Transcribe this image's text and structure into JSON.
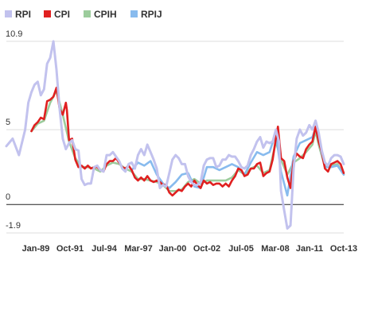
{
  "chart_data": {
    "type": "line",
    "title": "",
    "xlabel": "",
    "ylabel": "",
    "x_start": "1987-01",
    "x_end": "2013-12",
    "ylim": [
      -1.9,
      10.9
    ],
    "yticks": [
      10.9,
      5,
      0,
      -1.9
    ],
    "ytick_labels": [
      "10.9",
      "5",
      "0",
      "-1.9"
    ],
    "xtick_labels": [
      "Jan-89",
      "Oct-91",
      "Jul-94",
      "Mar-97",
      "Jan-00",
      "Oct-02",
      "Jul-05",
      "Mar-08",
      "Jan-11",
      "Oct-13"
    ],
    "grid": true,
    "legend_position": "top-left",
    "series": [
      {
        "name": "RPI",
        "color": "#c2c2ee",
        "points": [
          [
            "1987-01",
            3.9
          ],
          [
            "1987-07",
            4.4
          ],
          [
            "1988-01",
            3.3
          ],
          [
            "1988-07",
            5.0
          ],
          [
            "1988-10",
            6.8
          ],
          [
            "1989-01",
            7.5
          ],
          [
            "1989-04",
            8.0
          ],
          [
            "1989-07",
            8.2
          ],
          [
            "1989-10",
            7.3
          ],
          [
            "1990-01",
            7.7
          ],
          [
            "1990-04",
            9.4
          ],
          [
            "1990-07",
            9.8
          ],
          [
            "1990-10",
            10.9
          ],
          [
            "1991-01",
            9.0
          ],
          [
            "1991-04",
            6.4
          ],
          [
            "1991-07",
            4.4
          ],
          [
            "1991-10",
            3.7
          ],
          [
            "1992-01",
            4.1
          ],
          [
            "1992-04",
            4.3
          ],
          [
            "1992-07",
            3.7
          ],
          [
            "1992-10",
            3.6
          ],
          [
            "1993-01",
            1.7
          ],
          [
            "1993-04",
            1.3
          ],
          [
            "1993-07",
            1.4
          ],
          [
            "1993-10",
            1.4
          ],
          [
            "1994-01",
            2.5
          ],
          [
            "1994-04",
            2.6
          ],
          [
            "1994-07",
            2.3
          ],
          [
            "1994-10",
            2.2
          ],
          [
            "1995-01",
            3.3
          ],
          [
            "1995-04",
            3.3
          ],
          [
            "1995-07",
            3.5
          ],
          [
            "1995-10",
            3.2
          ],
          [
            "1996-01",
            2.9
          ],
          [
            "1996-04",
            2.4
          ],
          [
            "1996-07",
            2.2
          ],
          [
            "1996-10",
            2.7
          ],
          [
            "1997-01",
            2.8
          ],
          [
            "1997-04",
            2.4
          ],
          [
            "1997-07",
            3.3
          ],
          [
            "1997-10",
            3.7
          ],
          [
            "1998-01",
            3.3
          ],
          [
            "1998-04",
            4.0
          ],
          [
            "1998-07",
            3.5
          ],
          [
            "1998-10",
            3.0
          ],
          [
            "1999-01",
            2.4
          ],
          [
            "1999-04",
            1.1
          ],
          [
            "1999-07",
            1.3
          ],
          [
            "1999-10",
            1.2
          ],
          [
            "2000-01",
            2.1
          ],
          [
            "2000-04",
            3.0
          ],
          [
            "2000-07",
            3.3
          ],
          [
            "2000-10",
            3.1
          ],
          [
            "2001-01",
            2.7
          ],
          [
            "2001-04",
            2.7
          ],
          [
            "2001-07",
            1.9
          ],
          [
            "2001-10",
            1.5
          ],
          [
            "2002-01",
            1.3
          ],
          [
            "2002-04",
            1.3
          ],
          [
            "2002-07",
            1.5
          ],
          [
            "2002-10",
            2.6
          ],
          [
            "2003-01",
            3.0
          ],
          [
            "2003-04",
            3.1
          ],
          [
            "2003-07",
            3.1
          ],
          [
            "2003-10",
            2.5
          ],
          [
            "2004-01",
            2.6
          ],
          [
            "2004-04",
            3.0
          ],
          [
            "2004-07",
            3.0
          ],
          [
            "2004-10",
            3.3
          ],
          [
            "2005-01",
            3.2
          ],
          [
            "2005-04",
            3.2
          ],
          [
            "2005-07",
            2.9
          ],
          [
            "2005-10",
            2.5
          ],
          [
            "2006-01",
            2.4
          ],
          [
            "2006-04",
            2.6
          ],
          [
            "2006-07",
            3.3
          ],
          [
            "2006-10",
            3.7
          ],
          [
            "2007-01",
            4.2
          ],
          [
            "2007-04",
            4.5
          ],
          [
            "2007-07",
            3.8
          ],
          [
            "2007-10",
            4.2
          ],
          [
            "2008-01",
            4.1
          ],
          [
            "2008-04",
            4.2
          ],
          [
            "2008-07",
            5.0
          ],
          [
            "2008-10",
            4.2
          ],
          [
            "2008-12",
            0.9
          ],
          [
            "2009-03",
            -0.4
          ],
          [
            "2009-06",
            -1.6
          ],
          [
            "2009-09",
            -1.4
          ],
          [
            "2009-12",
            2.4
          ],
          [
            "2010-03",
            4.4
          ],
          [
            "2010-06",
            5.0
          ],
          [
            "2010-09",
            4.6
          ],
          [
            "2010-12",
            4.8
          ],
          [
            "2011-03",
            5.3
          ],
          [
            "2011-06",
            5.0
          ],
          [
            "2011-09",
            5.6
          ],
          [
            "2011-12",
            4.8
          ],
          [
            "2012-03",
            3.6
          ],
          [
            "2012-06",
            2.8
          ],
          [
            "2012-09",
            2.6
          ],
          [
            "2012-12",
            3.1
          ],
          [
            "2013-03",
            3.3
          ],
          [
            "2013-06",
            3.3
          ],
          [
            "2013-09",
            3.2
          ],
          [
            "2013-12",
            2.7
          ]
        ]
      },
      {
        "name": "CPI",
        "color": "#e02020",
        "points": [
          [
            "1989-01",
            4.9
          ],
          [
            "1989-04",
            5.3
          ],
          [
            "1989-07",
            5.5
          ],
          [
            "1989-10",
            5.8
          ],
          [
            "1990-01",
            5.7
          ],
          [
            "1990-04",
            6.9
          ],
          [
            "1990-07",
            7.0
          ],
          [
            "1990-10",
            7.2
          ],
          [
            "1991-01",
            7.8
          ],
          [
            "1991-04",
            6.4
          ],
          [
            "1991-07",
            6.0
          ],
          [
            "1991-10",
            6.8
          ],
          [
            "1991-11",
            6.3
          ],
          [
            "1992-01",
            4.3
          ],
          [
            "1992-04",
            4.4
          ],
          [
            "1992-07",
            3.0
          ],
          [
            "1992-10",
            2.5
          ],
          [
            "1993-01",
            2.6
          ],
          [
            "1993-04",
            2.4
          ],
          [
            "1993-07",
            2.6
          ],
          [
            "1993-10",
            2.4
          ],
          [
            "1994-01",
            2.5
          ],
          [
            "1994-04",
            2.5
          ],
          [
            "1994-07",
            2.3
          ],
          [
            "1994-10",
            2.2
          ],
          [
            "1995-01",
            2.7
          ],
          [
            "1995-04",
            2.9
          ],
          [
            "1995-07",
            2.9
          ],
          [
            "1995-10",
            3.1
          ],
          [
            "1996-01",
            2.8
          ],
          [
            "1996-04",
            2.5
          ],
          [
            "1996-07",
            2.4
          ],
          [
            "1996-10",
            2.6
          ],
          [
            "1997-01",
            2.3
          ],
          [
            "1997-04",
            1.8
          ],
          [
            "1997-07",
            1.6
          ],
          [
            "1997-10",
            1.8
          ],
          [
            "1998-01",
            1.6
          ],
          [
            "1998-04",
            1.9
          ],
          [
            "1998-07",
            1.6
          ],
          [
            "1998-10",
            1.5
          ],
          [
            "1999-01",
            1.6
          ],
          [
            "1999-04",
            1.5
          ],
          [
            "1999-07",
            1.3
          ],
          [
            "1999-10",
            1.3
          ],
          [
            "2000-01",
            0.8
          ],
          [
            "2000-04",
            0.6
          ],
          [
            "2000-07",
            0.8
          ],
          [
            "2000-10",
            1.0
          ],
          [
            "2001-01",
            0.9
          ],
          [
            "2001-04",
            1.2
          ],
          [
            "2001-07",
            1.4
          ],
          [
            "2001-10",
            1.2
          ],
          [
            "2002-01",
            1.6
          ],
          [
            "2002-04",
            1.3
          ],
          [
            "2002-07",
            1.1
          ],
          [
            "2002-10",
            1.6
          ],
          [
            "2003-01",
            1.4
          ],
          [
            "2003-04",
            1.5
          ],
          [
            "2003-07",
            1.3
          ],
          [
            "2003-10",
            1.4
          ],
          [
            "2004-01",
            1.4
          ],
          [
            "2004-04",
            1.2
          ],
          [
            "2004-07",
            1.4
          ],
          [
            "2004-10",
            1.2
          ],
          [
            "2005-01",
            1.6
          ],
          [
            "2005-04",
            1.9
          ],
          [
            "2005-07",
            2.4
          ],
          [
            "2005-10",
            2.3
          ],
          [
            "2006-01",
            1.9
          ],
          [
            "2006-04",
            2.0
          ],
          [
            "2006-07",
            2.4
          ],
          [
            "2006-10",
            2.4
          ],
          [
            "2007-01",
            2.7
          ],
          [
            "2007-04",
            2.8
          ],
          [
            "2007-07",
            1.9
          ],
          [
            "2007-10",
            2.1
          ],
          [
            "2008-01",
            2.2
          ],
          [
            "2008-04",
            3.0
          ],
          [
            "2008-07",
            4.4
          ],
          [
            "2008-09",
            5.2
          ],
          [
            "2008-12",
            3.1
          ],
          [
            "2009-03",
            2.9
          ],
          [
            "2009-06",
            1.8
          ],
          [
            "2009-09",
            1.1
          ],
          [
            "2009-12",
            2.9
          ],
          [
            "2010-03",
            3.4
          ],
          [
            "2010-06",
            3.2
          ],
          [
            "2010-09",
            3.1
          ],
          [
            "2010-12",
            3.7
          ],
          [
            "2011-03",
            4.0
          ],
          [
            "2011-06",
            4.2
          ],
          [
            "2011-09",
            5.2
          ],
          [
            "2011-12",
            4.2
          ],
          [
            "2012-03",
            3.5
          ],
          [
            "2012-06",
            2.4
          ],
          [
            "2012-09",
            2.2
          ],
          [
            "2012-12",
            2.7
          ],
          [
            "2013-03",
            2.8
          ],
          [
            "2013-06",
            2.9
          ],
          [
            "2013-09",
            2.7
          ],
          [
            "2013-12",
            2.1
          ]
        ]
      },
      {
        "name": "CPIH",
        "color": "#9ccc9c",
        "points": [
          [
            "1989-01",
            4.9
          ],
          [
            "1989-07",
            5.4
          ],
          [
            "1990-01",
            5.6
          ],
          [
            "1990-07",
            6.8
          ],
          [
            "1991-01",
            7.6
          ],
          [
            "1991-07",
            6.0
          ],
          [
            "1992-01",
            4.2
          ],
          [
            "1992-07",
            3.1
          ],
          [
            "1993-01",
            2.5
          ],
          [
            "1993-07",
            2.5
          ],
          [
            "1994-01",
            2.4
          ],
          [
            "1994-07",
            2.2
          ],
          [
            "1995-01",
            2.6
          ],
          [
            "1995-07",
            2.8
          ],
          [
            "1996-01",
            2.7
          ],
          [
            "1996-07",
            2.4
          ],
          [
            "1997-01",
            2.2
          ],
          [
            "1997-07",
            1.7
          ],
          [
            "1998-01",
            1.7
          ],
          [
            "1998-07",
            1.6
          ],
          [
            "1999-01",
            1.5
          ],
          [
            "1999-07",
            1.3
          ],
          [
            "2000-01",
            0.9
          ],
          [
            "2000-07",
            0.9
          ],
          [
            "2001-01",
            1.0
          ],
          [
            "2001-07",
            1.5
          ],
          [
            "2002-01",
            1.7
          ],
          [
            "2002-07",
            1.4
          ],
          [
            "2003-01",
            1.6
          ],
          [
            "2003-07",
            1.6
          ],
          [
            "2004-01",
            1.6
          ],
          [
            "2004-07",
            1.6
          ],
          [
            "2005-01",
            1.8
          ],
          [
            "2005-07",
            2.3
          ],
          [
            "2006-01",
            2.0
          ],
          [
            "2006-07",
            2.4
          ],
          [
            "2007-01",
            2.6
          ],
          [
            "2007-07",
            2.1
          ],
          [
            "2008-01",
            2.3
          ],
          [
            "2008-07",
            4.2
          ],
          [
            "2008-12",
            3.0
          ],
          [
            "2009-06",
            2.0
          ],
          [
            "2009-12",
            2.8
          ],
          [
            "2010-06",
            3.1
          ],
          [
            "2010-12",
            3.5
          ],
          [
            "2011-06",
            4.0
          ],
          [
            "2011-09",
            4.9
          ],
          [
            "2011-12",
            4.0
          ],
          [
            "2012-06",
            2.5
          ],
          [
            "2012-12",
            2.6
          ],
          [
            "2013-06",
            2.7
          ],
          [
            "2013-12",
            2.0
          ]
        ]
      },
      {
        "name": "RPIJ",
        "color": "#88bbee",
        "points": [
          [
            "1997-01",
            2.3
          ],
          [
            "1997-07",
            2.8
          ],
          [
            "1998-01",
            2.6
          ],
          [
            "1998-07",
            2.9
          ],
          [
            "1999-01",
            2.0
          ],
          [
            "1999-07",
            1.4
          ],
          [
            "2000-01",
            1.1
          ],
          [
            "2000-07",
            1.5
          ],
          [
            "2001-01",
            2.0
          ],
          [
            "2001-07",
            2.1
          ],
          [
            "2002-01",
            1.2
          ],
          [
            "2002-07",
            1.1
          ],
          [
            "2003-01",
            2.5
          ],
          [
            "2003-07",
            2.5
          ],
          [
            "2004-01",
            2.3
          ],
          [
            "2004-07",
            2.5
          ],
          [
            "2005-01",
            2.7
          ],
          [
            "2005-07",
            2.5
          ],
          [
            "2006-01",
            2.0
          ],
          [
            "2006-07",
            2.8
          ],
          [
            "2007-01",
            3.5
          ],
          [
            "2007-07",
            3.3
          ],
          [
            "2008-01",
            3.5
          ],
          [
            "2008-07",
            4.8
          ],
          [
            "2008-12",
            2.2
          ],
          [
            "2009-06",
            0.6
          ],
          [
            "2009-12",
            3.2
          ],
          [
            "2010-06",
            4.1
          ],
          [
            "2010-12",
            4.3
          ],
          [
            "2011-06",
            4.5
          ],
          [
            "2011-09",
            5.1
          ],
          [
            "2011-12",
            4.3
          ],
          [
            "2012-06",
            2.5
          ],
          [
            "2012-12",
            2.5
          ],
          [
            "2013-06",
            2.6
          ],
          [
            "2013-12",
            2.0
          ]
        ]
      }
    ]
  }
}
